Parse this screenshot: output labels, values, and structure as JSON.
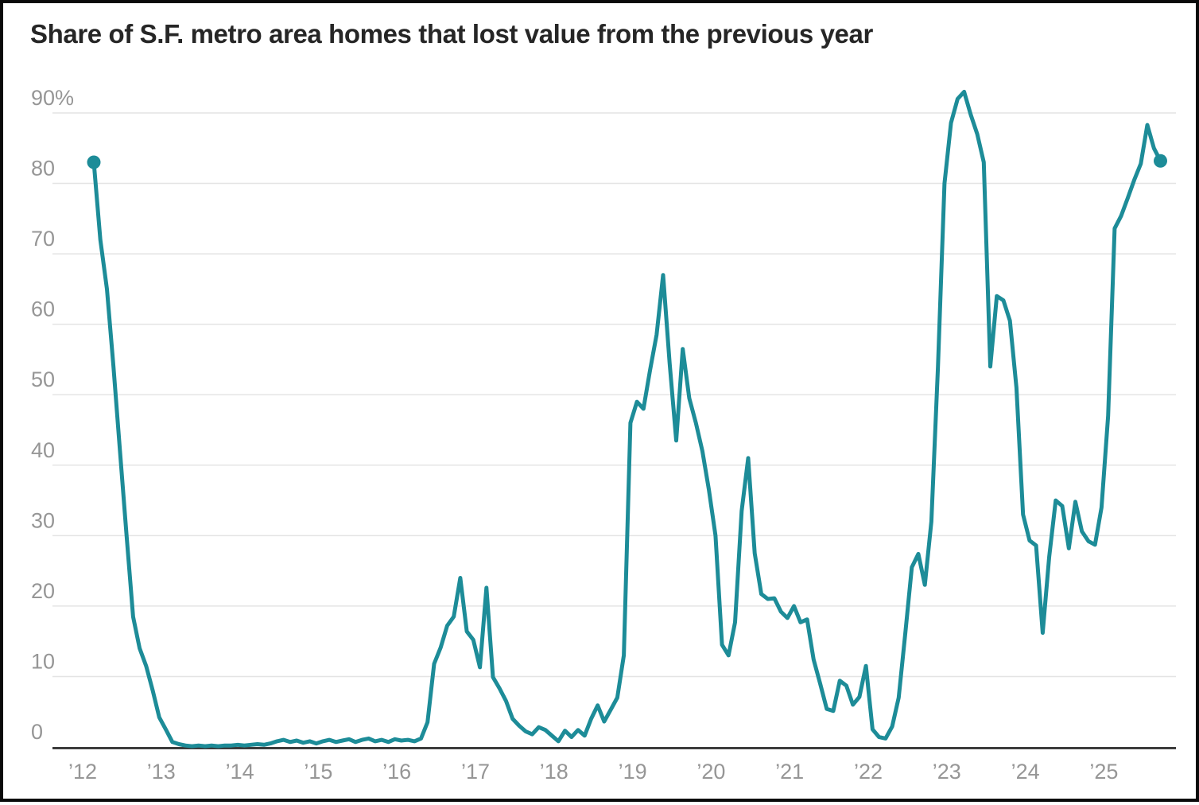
{
  "title": "Share of S.F. metro area homes that lost value from the previous year",
  "chart_data": {
    "type": "line",
    "title": "Share of S.F. metro area homes that lost value from the previous year",
    "series_name": "Share of homes that lost value from the previous year",
    "unit": "%",
    "frequency": "monthly",
    "start": "2012-02",
    "end": "2025-09",
    "line_color": "#1d8c98",
    "endpoint_markers": true,
    "grid": "horizontal",
    "ylim": [
      0,
      95
    ],
    "y_ticks": [
      0,
      10,
      20,
      30,
      40,
      50,
      60,
      70,
      80,
      90
    ],
    "y_tick_labels": [
      "0",
      "10",
      "20",
      "30",
      "40",
      "50",
      "60",
      "70",
      "80",
      "90%"
    ],
    "x_tick_labels": [
      "’12",
      "’13",
      "’14",
      "’15",
      "’16",
      "’17",
      "’18",
      "’19",
      "’20",
      "’21",
      "’22",
      "’23",
      "’24",
      "’25"
    ],
    "values": [
      83,
      72,
      65,
      54,
      42,
      30,
      18.5,
      14,
      11.5,
      8,
      4.2,
      2.5,
      0.7,
      0.4,
      0.2,
      0.1,
      0.2,
      0.1,
      0.2,
      0.1,
      0.2,
      0.2,
      0.3,
      0.2,
      0.3,
      0.4,
      0.3,
      0.5,
      0.8,
      1.0,
      0.7,
      0.9,
      0.6,
      0.8,
      0.5,
      0.8,
      1.0,
      0.7,
      0.9,
      1.1,
      0.7,
      1.0,
      1.2,
      0.8,
      1.0,
      0.7,
      1.1,
      0.9,
      1.0,
      0.8,
      1.2,
      3.5,
      11.8,
      14.1,
      17.2,
      18.5,
      24,
      16.4,
      15.2,
      11.3,
      22.6,
      9.9,
      8.3,
      6.5,
      4.0,
      3.0,
      2.2,
      1.8,
      2.8,
      2.4,
      1.6,
      0.8,
      2.3,
      1.4,
      2.4,
      1.6,
      4.0,
      5.9,
      3.6,
      5.3,
      7.0,
      13,
      46,
      49,
      48,
      53.5,
      58.5,
      67,
      54.5,
      43.5,
      56.5,
      49.5,
      46,
      42,
      36.5,
      30,
      14.5,
      13,
      17.7,
      33.5,
      41,
      27.5,
      21.7,
      21.0,
      21.1,
      19.2,
      18.3,
      20.0,
      17.7,
      18.1,
      12.4,
      9.0,
      5.4,
      5.1,
      9.4,
      8.7,
      6.0,
      7.1,
      11.5,
      2.5,
      1.4,
      1.2,
      2.9,
      7.0,
      16.0,
      25.5,
      27.4,
      23.0,
      32,
      54,
      80,
      88.6,
      92,
      93,
      89.8,
      87,
      83,
      54,
      64,
      63.4,
      60.5,
      51,
      33,
      29.3,
      28.6,
      16.2,
      27,
      35,
      34.2,
      28.2,
      34.8,
      30.6,
      29.2,
      28.7,
      34,
      47,
      73.6,
      75.4,
      77.9,
      80.5,
      82.8,
      88.3,
      85,
      83.2
    ]
  }
}
